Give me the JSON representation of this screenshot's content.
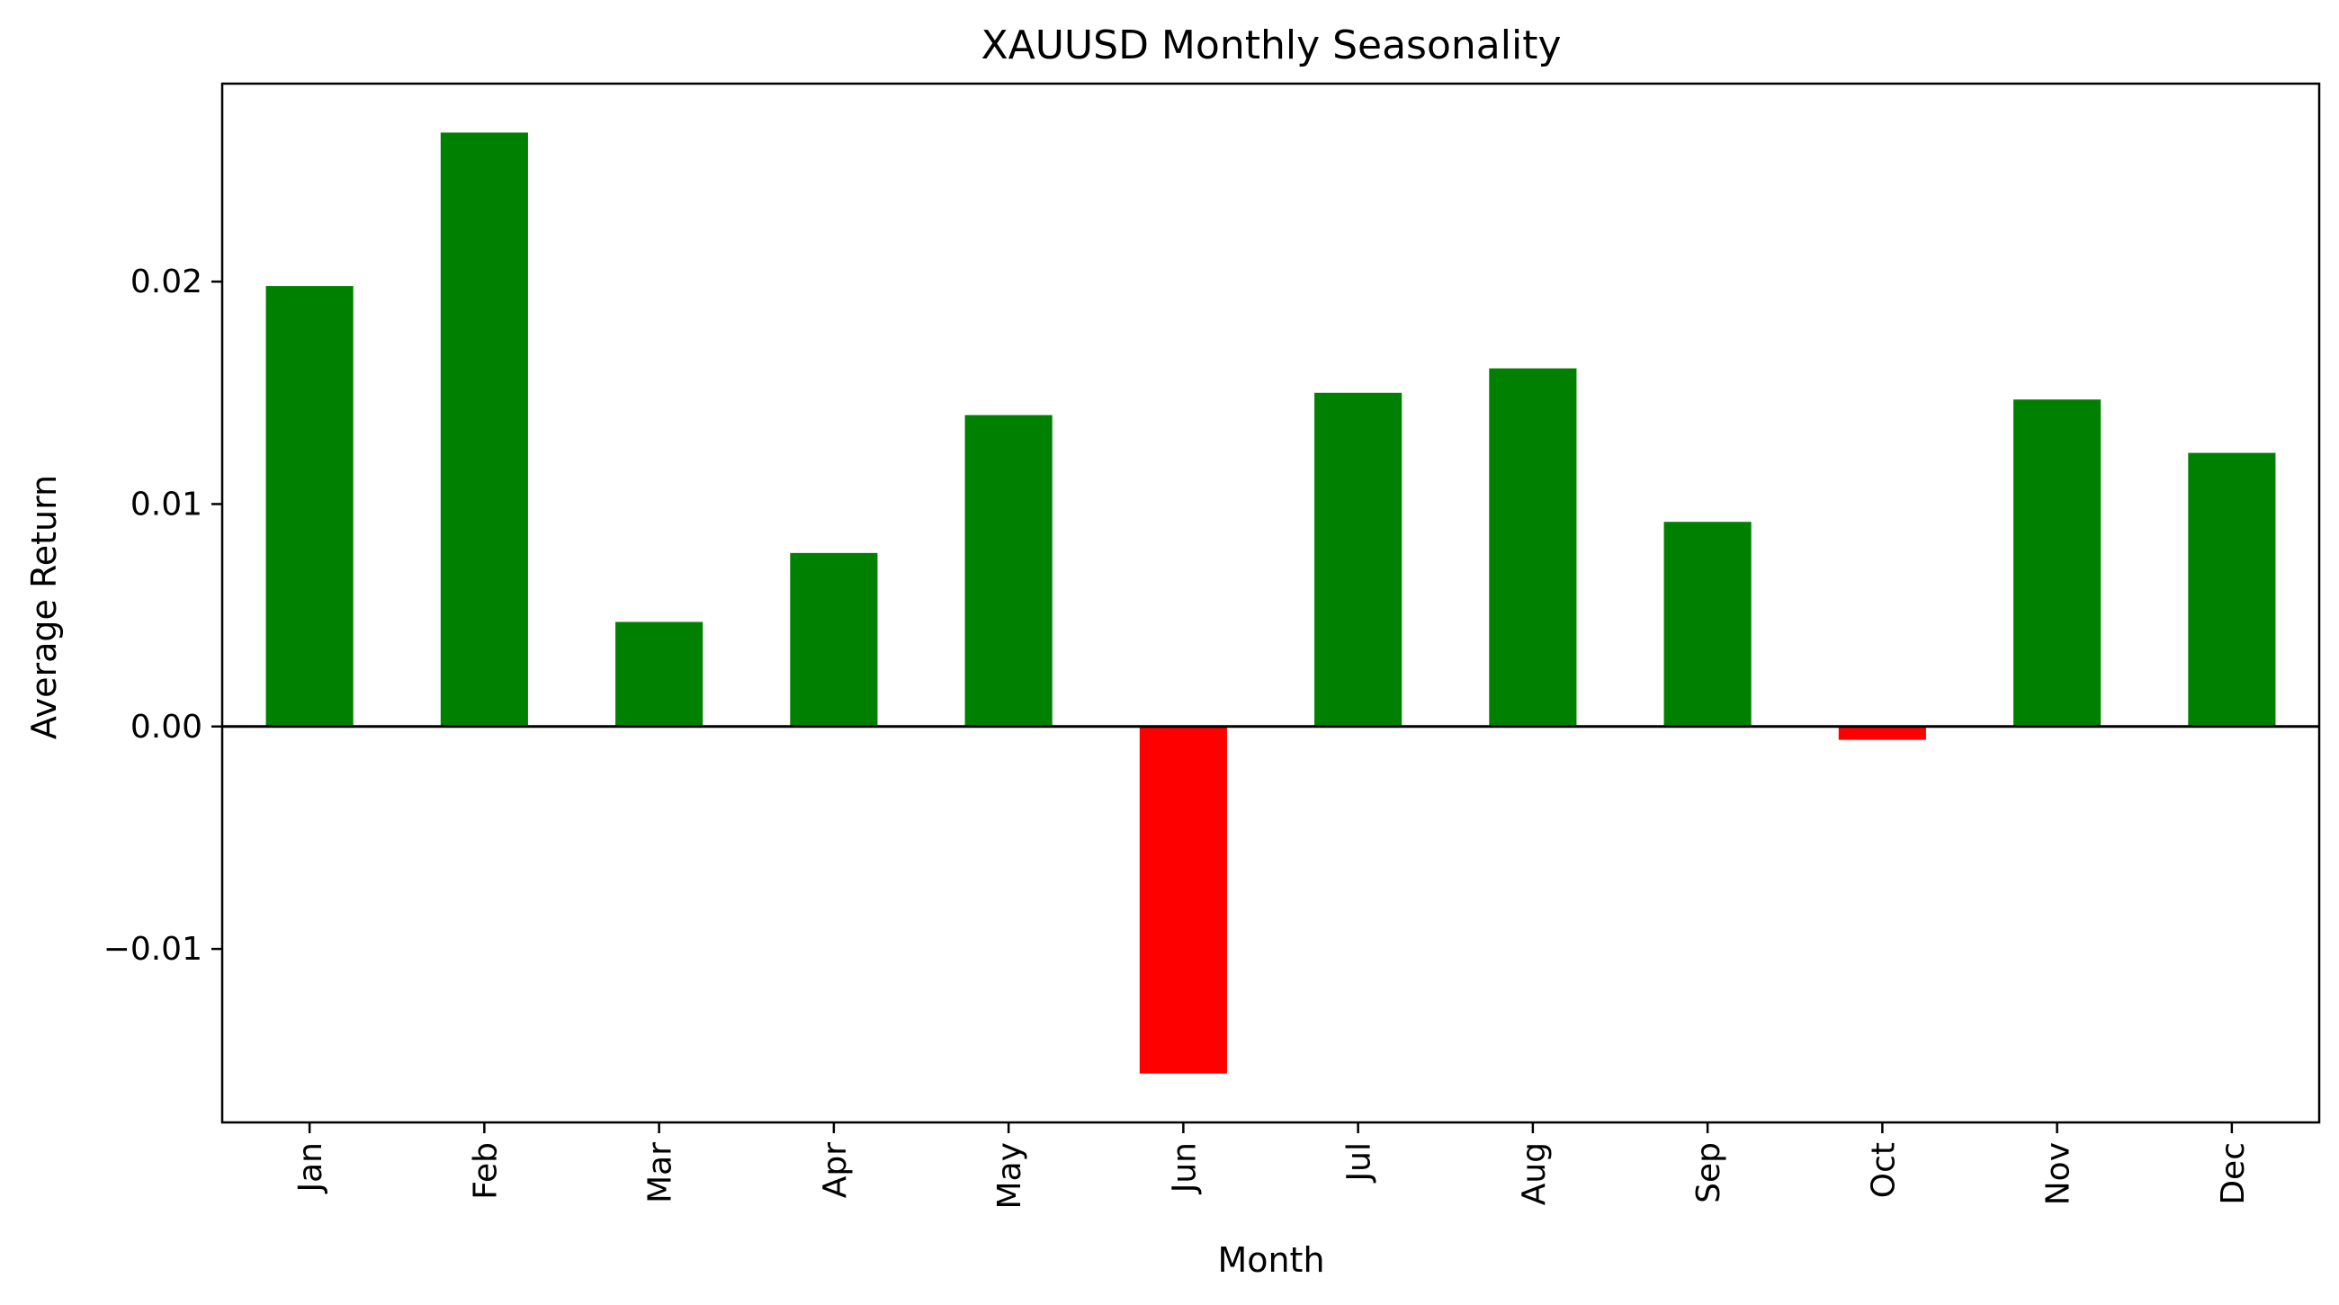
{
  "chart_data": {
    "type": "bar",
    "title": "XAUUSD Monthly Seasonality",
    "xlabel": "Month",
    "ylabel": "Average Return",
    "categories": [
      "Jan",
      "Feb",
      "Mar",
      "Apr",
      "May",
      "Jun",
      "Jul",
      "Aug",
      "Sep",
      "Oct",
      "Nov",
      "Dec"
    ],
    "values": [
      0.0198,
      0.0267,
      0.0047,
      0.0078,
      0.014,
      -0.0156,
      0.015,
      0.0161,
      0.0092,
      -0.0006,
      0.0147,
      0.0123
    ],
    "ylim": [
      -0.0178,
      0.0289
    ],
    "yticks": [
      -0.01,
      0.0,
      0.01,
      0.02
    ],
    "ytick_labels": [
      "−0.01",
      "0.00",
      "0.01",
      "0.02"
    ],
    "grid": false,
    "zero_line": true,
    "colors": {
      "positive": "#008000",
      "negative": "#ff0000",
      "axis": "#000000"
    }
  }
}
